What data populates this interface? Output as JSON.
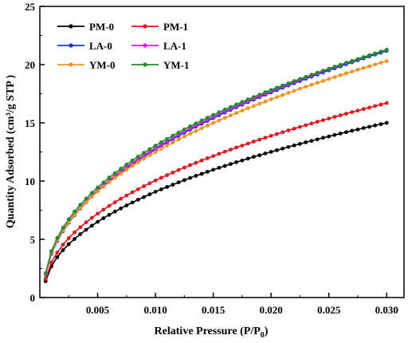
{
  "chart_data": {
    "type": "line",
    "title": "",
    "xlabel": "Relative Pressure (P/P",
    "xlabel_sub": "0",
    "xlabel_close": ")",
    "ylabel": "Quantity Adsorbed (cm³/g STP )",
    "xlim": [
      0,
      0.0315
    ],
    "ylim": [
      0,
      25
    ],
    "xticks": [
      0.005,
      0.01,
      0.015,
      0.02,
      0.025,
      0.03
    ],
    "xtick_labels": [
      "0.005",
      "0.010",
      "0.015",
      "0.020",
      "0.025",
      "0.030"
    ],
    "yticks": [
      0,
      5,
      10,
      15,
      20,
      25
    ],
    "ytick_labels": [
      "0",
      "5",
      "10",
      "15",
      "20",
      "25"
    ],
    "grid": false,
    "legend_position": "top-left",
    "x": [
      0.0005,
      0.001,
      0.0015,
      0.002,
      0.0025,
      0.003,
      0.0035,
      0.004,
      0.0045,
      0.005,
      0.0055,
      0.006,
      0.0065,
      0.007,
      0.0075,
      0.008,
      0.0085,
      0.009,
      0.0095,
      0.01,
      0.0105,
      0.011,
      0.0115,
      0.012,
      0.0125,
      0.013,
      0.0135,
      0.014,
      0.0145,
      0.015,
      0.0155,
      0.016,
      0.0165,
      0.017,
      0.0175,
      0.018,
      0.0185,
      0.019,
      0.0195,
      0.02,
      0.0205,
      0.021,
      0.0215,
      0.022,
      0.0225,
      0.023,
      0.0235,
      0.024,
      0.0245,
      0.025,
      0.0255,
      0.026,
      0.0265,
      0.027,
      0.0275,
      0.028,
      0.0285,
      0.029,
      0.0295,
      0.03
    ],
    "series": [
      {
        "name": "PM-0",
        "color": "#000000",
        "values": [
          1.4,
          2.68,
          3.46,
          4.07,
          4.58,
          5.03,
          5.44,
          5.82,
          6.17,
          6.5,
          6.81,
          7.1,
          7.38,
          7.65,
          7.91,
          8.16,
          8.4,
          8.63,
          8.86,
          9.08,
          9.29,
          9.49,
          9.69,
          9.89,
          10.08,
          10.27,
          10.45,
          10.62,
          10.8,
          10.97,
          11.14,
          11.3,
          11.46,
          11.62,
          11.77,
          11.93,
          12.08,
          12.22,
          12.37,
          12.51,
          12.65,
          12.79,
          12.93,
          13.06,
          13.19,
          13.33,
          13.45,
          13.58,
          13.71,
          13.83,
          13.96,
          14.08,
          14.2,
          14.32,
          14.43,
          14.55,
          14.66,
          14.78,
          14.89,
          15.0
        ]
      },
      {
        "name": "PM-1",
        "color": "#e8141c",
        "values": [
          1.6,
          3.0,
          3.86,
          4.53,
          5.1,
          5.59,
          6.04,
          6.46,
          6.84,
          7.2,
          7.55,
          7.87,
          8.18,
          8.48,
          8.76,
          9.04,
          9.3,
          9.56,
          9.81,
          10.05,
          10.28,
          10.51,
          10.73,
          10.95,
          11.16,
          11.37,
          11.57,
          11.77,
          11.96,
          12.15,
          12.34,
          12.52,
          12.7,
          12.88,
          13.05,
          13.22,
          13.39,
          13.56,
          13.72,
          13.88,
          14.04,
          14.19,
          14.35,
          14.5,
          14.65,
          14.8,
          14.94,
          15.09,
          15.23,
          15.37,
          15.51,
          15.65,
          15.78,
          15.92,
          16.05,
          16.18,
          16.31,
          16.44,
          16.57,
          16.7
        ]
      },
      {
        "name": "LA-0",
        "color": "#1f2fd4",
        "values": [
          1.95,
          3.75,
          4.85,
          5.71,
          6.43,
          7.07,
          7.64,
          8.17,
          8.66,
          9.12,
          9.55,
          9.96,
          10.35,
          10.73,
          11.09,
          11.44,
          11.78,
          12.1,
          12.42,
          12.73,
          13.03,
          13.32,
          13.6,
          13.88,
          14.15,
          14.41,
          14.67,
          14.92,
          15.17,
          15.41,
          15.65,
          15.88,
          16.11,
          16.34,
          16.56,
          16.78,
          16.99,
          17.2,
          17.41,
          17.61,
          17.81,
          18.01,
          18.21,
          18.4,
          18.59,
          18.78,
          18.96,
          19.14,
          19.32,
          19.5,
          19.68,
          19.85,
          20.03,
          20.2,
          20.37,
          20.53,
          20.7,
          20.86,
          21.02,
          21.18
        ]
      },
      {
        "name": "LA-1",
        "color": "#e21ce8",
        "values": [
          2.0,
          3.82,
          4.93,
          5.8,
          6.53,
          7.17,
          7.75,
          8.28,
          8.77,
          9.24,
          9.67,
          10.09,
          10.48,
          10.86,
          11.22,
          11.57,
          11.9,
          12.23,
          12.54,
          12.85,
          13.15,
          13.44,
          13.72,
          14.0,
          14.27,
          14.53,
          14.79,
          15.04,
          15.28,
          15.53,
          15.76,
          16.0,
          16.23,
          16.45,
          16.67,
          16.89,
          17.1,
          17.31,
          17.52,
          17.72,
          17.92,
          18.12,
          18.32,
          18.51,
          18.7,
          18.89,
          19.07,
          19.25,
          19.43,
          19.61,
          19.79,
          19.96,
          20.13,
          20.3,
          20.47,
          20.64,
          20.8,
          20.96,
          21.12,
          21.28
        ]
      },
      {
        "name": "YM-0",
        "color": "#f4921c",
        "values": [
          2.05,
          3.85,
          4.94,
          5.79,
          6.5,
          7.12,
          7.68,
          8.19,
          8.66,
          9.1,
          9.51,
          9.9,
          10.27,
          10.63,
          10.97,
          11.3,
          11.61,
          11.92,
          12.21,
          12.5,
          12.78,
          13.05,
          13.31,
          13.57,
          13.82,
          14.06,
          14.3,
          14.54,
          14.77,
          14.99,
          15.21,
          15.43,
          15.64,
          15.85,
          16.05,
          16.25,
          16.45,
          16.64,
          16.83,
          17.02,
          17.21,
          17.39,
          17.57,
          17.75,
          17.93,
          18.1,
          18.27,
          18.44,
          18.6,
          18.77,
          18.93,
          19.09,
          19.25,
          19.4,
          19.56,
          19.71,
          19.86,
          20.01,
          20.16,
          20.3
        ]
      },
      {
        "name": "YM-1",
        "color": "#1e8c2c",
        "values": [
          2.1,
          3.98,
          5.11,
          5.99,
          6.73,
          7.38,
          7.96,
          8.49,
          8.99,
          9.45,
          9.88,
          10.3,
          10.69,
          11.06,
          11.42,
          11.77,
          12.1,
          12.43,
          12.74,
          13.04,
          13.34,
          13.62,
          13.9,
          14.17,
          14.44,
          14.7,
          14.95,
          15.2,
          15.44,
          15.68,
          15.91,
          16.14,
          16.36,
          16.58,
          16.8,
          17.01,
          17.22,
          17.42,
          17.63,
          17.82,
          18.02,
          18.21,
          18.4,
          18.59,
          18.77,
          18.95,
          19.13,
          19.31,
          19.48,
          19.65,
          19.82,
          19.99,
          20.16,
          20.32,
          20.48,
          20.64,
          20.8,
          20.96,
          21.11,
          21.27
        ]
      }
    ]
  }
}
